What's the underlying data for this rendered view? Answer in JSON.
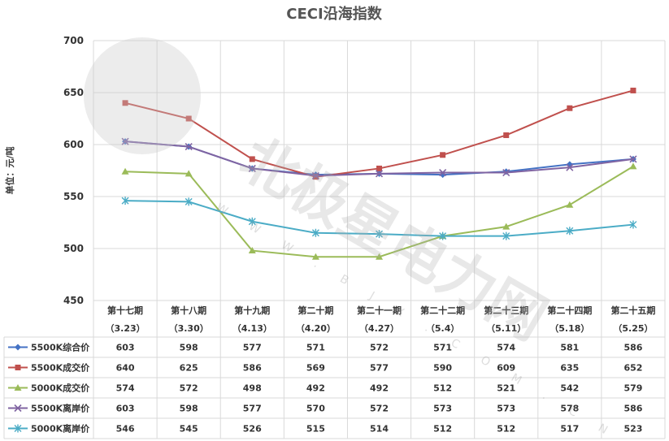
{
  "chart_data": {
    "type": "line",
    "title": "CECI沿海指数",
    "xlabel": "",
    "ylabel": "单位：元/吨",
    "ylim": [
      450,
      700
    ],
    "yticks": [
      450,
      500,
      550,
      600,
      650,
      700
    ],
    "categories": [
      {
        "period": "第十七期",
        "date": "（3.23）"
      },
      {
        "period": "第十八期",
        "date": "（3.30）"
      },
      {
        "period": "第十九期",
        "date": "（4.13）"
      },
      {
        "period": "第二十期",
        "date": "（4.20）"
      },
      {
        "period": "第二十一期",
        "date": "（4.27）"
      },
      {
        "period": "第二十二期",
        "date": "（5.4）"
      },
      {
        "period": "第二十三期",
        "date": "（5.11）"
      },
      {
        "period": "第二十四期",
        "date": "（5.18）"
      },
      {
        "period": "第二十五期",
        "date": "（5.25）"
      }
    ],
    "grid": true,
    "legend": "bottom-table",
    "series": [
      {
        "name": "5500K综合价",
        "color": "#4472c4",
        "marker": "diamond",
        "values": [
          603,
          598,
          577,
          571,
          572,
          571,
          574,
          581,
          586
        ]
      },
      {
        "name": "5500K成交价",
        "color": "#c0504d",
        "marker": "square",
        "values": [
          640,
          625,
          586,
          569,
          577,
          590,
          609,
          635,
          652
        ]
      },
      {
        "name": "5000K成交价",
        "color": "#9bbb59",
        "marker": "triangle",
        "values": [
          574,
          572,
          498,
          492,
          492,
          512,
          521,
          542,
          579
        ]
      },
      {
        "name": "5500K离岸价",
        "color": "#8064a2",
        "marker": "x",
        "values": [
          603,
          598,
          577,
          570,
          572,
          573,
          573,
          578,
          586
        ]
      },
      {
        "name": "5000K离岸价",
        "color": "#4bacc6",
        "marker": "star",
        "values": [
          546,
          545,
          526,
          515,
          514,
          512,
          512,
          517,
          523
        ]
      }
    ]
  },
  "watermark": {
    "text": "北极星电力网",
    "sub": "W W W . B J X . C O M . C N"
  }
}
